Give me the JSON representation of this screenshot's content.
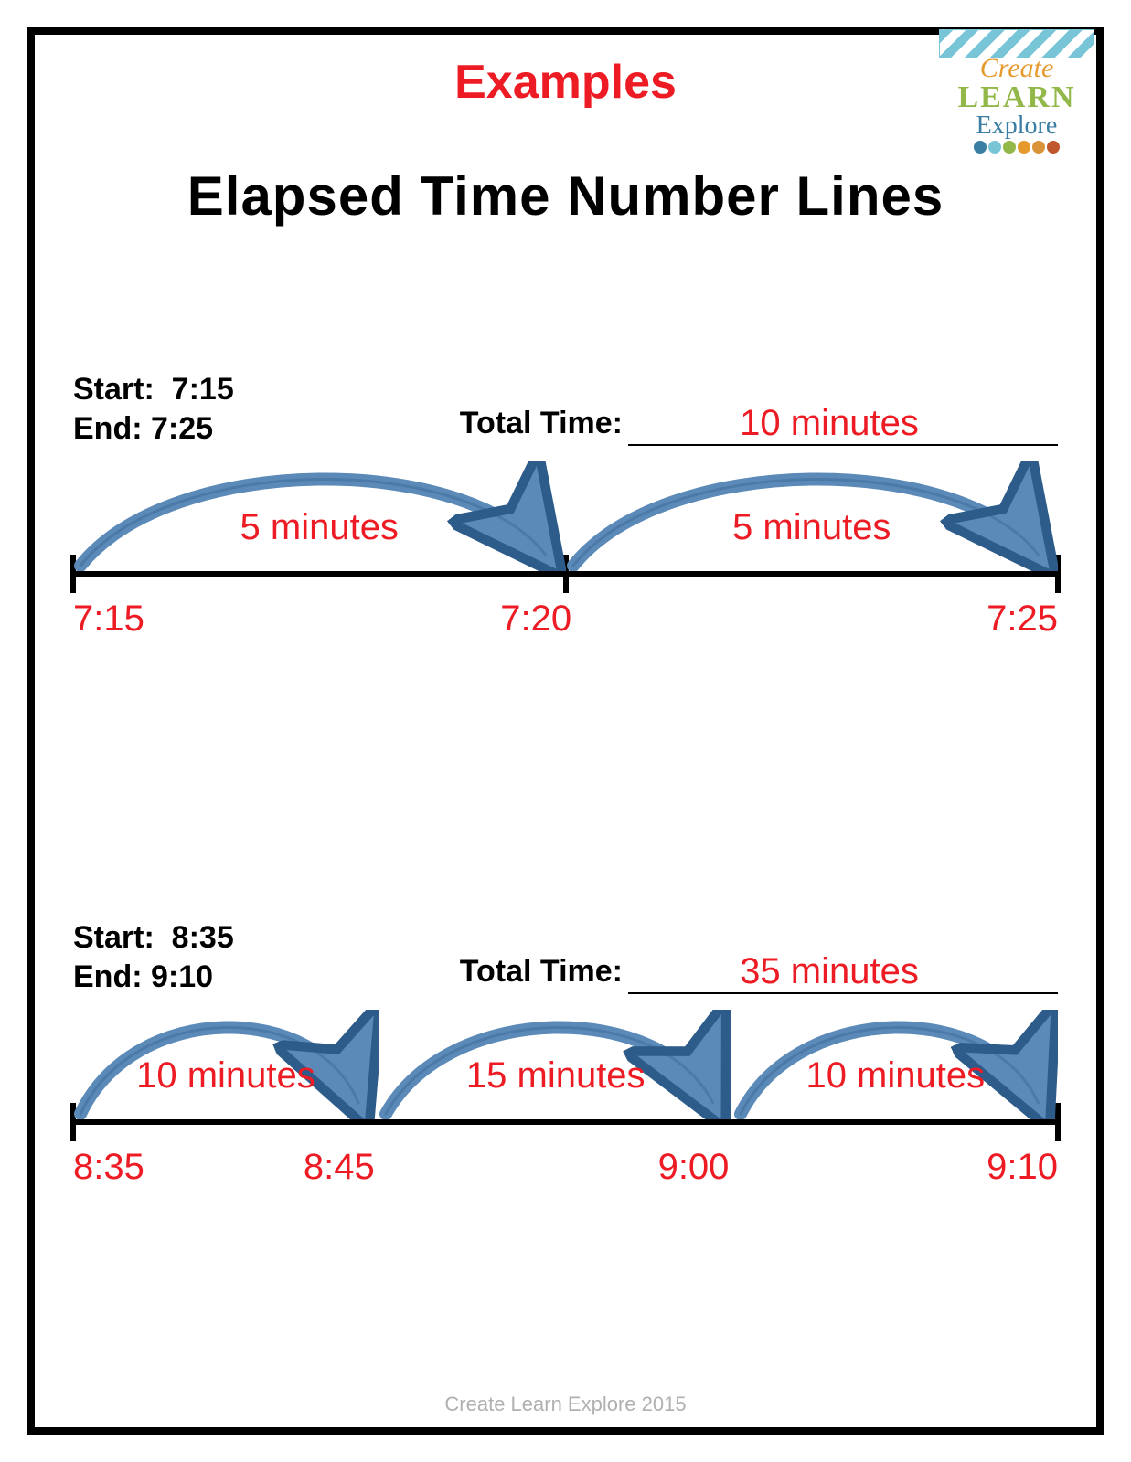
{
  "title": "Examples",
  "subtitle": "Elapsed Time Number Lines",
  "footer": "Create Learn Explore 2015",
  "colors": {
    "title_red": "#ed1c24",
    "black": "#000000",
    "arrow_fill": "#5b8ab8",
    "arrow_stroke": "#2d5c8a"
  },
  "logo": {
    "line1": "Create",
    "line2": "LEARN",
    "line3": "Explore",
    "dot_colors": [
      "#3a7ea3",
      "#79c5d8",
      "#93b84a",
      "#e69a2e",
      "#d99338",
      "#c1572d"
    ]
  },
  "problems": [
    {
      "start_label": "Start:",
      "start_value": "7:15",
      "end_label": "End:",
      "end_value": "7:25",
      "total_label": "Total Time:",
      "total_value": "10 minutes",
      "line": {
        "ticks_pct": [
          0,
          50,
          100
        ],
        "time_labels": [
          {
            "text": "7:15",
            "pct": 0,
            "align": "left"
          },
          {
            "text": "7:20",
            "pct": 47,
            "align": "center"
          },
          {
            "text": "7:25",
            "pct": 100,
            "align": "right"
          }
        ],
        "arcs": [
          {
            "from_pct": 0,
            "to_pct": 50,
            "label": "5 minutes"
          },
          {
            "from_pct": 50,
            "to_pct": 100,
            "label": "5 minutes"
          }
        ]
      }
    },
    {
      "start_label": "Start:",
      "start_value": "8:35",
      "end_label": "End:",
      "end_value": "9:10",
      "total_label": "Total Time:",
      "total_value": "35 minutes",
      "line": {
        "ticks_pct": [
          0,
          100
        ],
        "time_labels": [
          {
            "text": "8:35",
            "pct": 0,
            "align": "left"
          },
          {
            "text": "8:45",
            "pct": 27,
            "align": "center"
          },
          {
            "text": "9:00",
            "pct": 63,
            "align": "center"
          },
          {
            "text": "9:10",
            "pct": 100,
            "align": "right"
          }
        ],
        "arcs": [
          {
            "from_pct": 0,
            "to_pct": 31,
            "label": "10 minutes"
          },
          {
            "from_pct": 31,
            "to_pct": 67,
            "label": "15 minutes"
          },
          {
            "from_pct": 67,
            "to_pct": 100,
            "label": "10 minutes"
          }
        ]
      }
    }
  ]
}
